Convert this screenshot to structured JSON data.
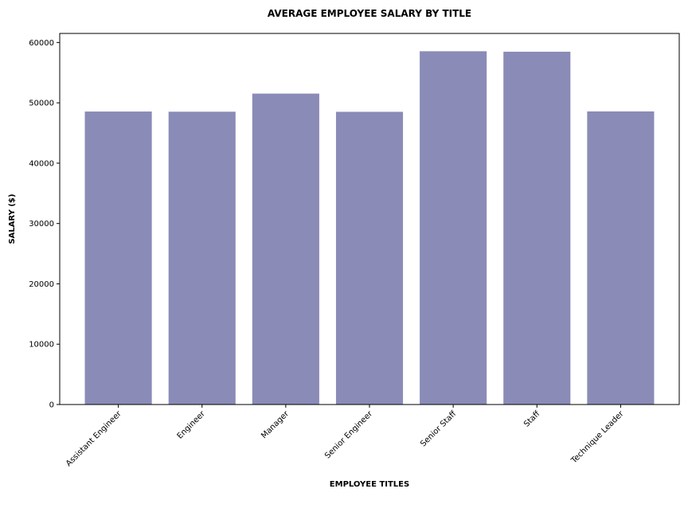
{
  "chart_data": {
    "type": "bar",
    "title": "AVERAGE EMPLOYEE SALARY BY TITLE",
    "xlabel": "EMPLOYEE TITLES",
    "ylabel": "SALARY ($)",
    "categories": [
      "Assistant Engineer",
      "Engineer",
      "Manager",
      "Senior Engineer",
      "Senior Staff",
      "Staff",
      "Technique Leader"
    ],
    "values": [
      48560,
      48530,
      51530,
      48510,
      58550,
      58470,
      48580
    ],
    "ylim": [
      0,
      61500
    ],
    "yticks": [
      0,
      10000,
      20000,
      30000,
      40000,
      50000,
      60000
    ],
    "bar_color": "#8a8bb7",
    "grid": false,
    "legend": "none"
  }
}
